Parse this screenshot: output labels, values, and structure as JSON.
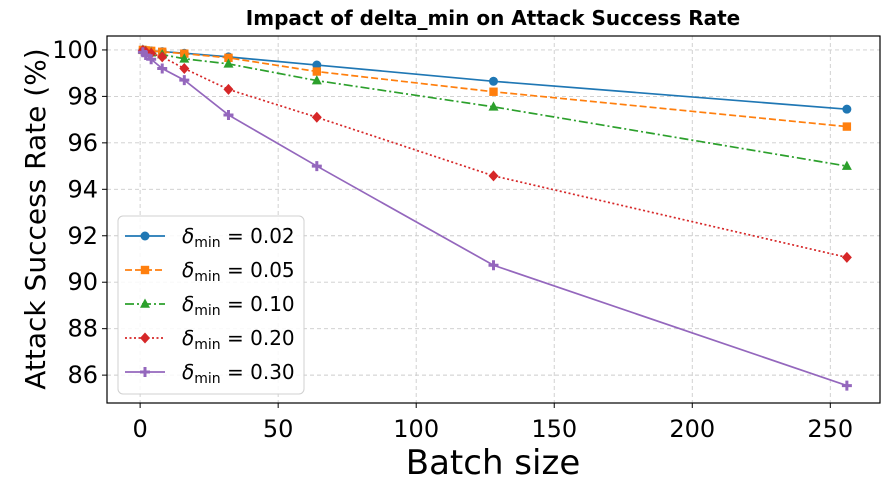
{
  "chart_data": {
    "type": "line",
    "title": "Impact of delta_min on Attack Success Rate",
    "xlabel": "Batch size",
    "ylabel": "Attack Success Rate (%)",
    "xlim": [
      -12,
      268
    ],
    "ylim": [
      84.8,
      100.6
    ],
    "xticks": [
      0,
      50,
      100,
      150,
      200,
      250
    ],
    "yticks": [
      86,
      88,
      90,
      92,
      94,
      96,
      98,
      100
    ],
    "grid": true,
    "legend_position": "lower-left",
    "series": [
      {
        "name": "δmin = 0.02",
        "label_prefix": "δ",
        "label_sub": "min",
        "label_suffix": " = 0.02",
        "color": "#1f77b4",
        "marker": "circle",
        "linestyle": "solid",
        "points": [
          [
            1,
            100.0
          ],
          [
            2,
            99.98
          ],
          [
            4,
            99.96
          ],
          [
            8,
            99.93
          ],
          [
            16,
            99.86
          ],
          [
            32,
            99.7
          ],
          [
            64,
            99.35
          ],
          [
            128,
            98.65
          ],
          [
            256,
            97.45
          ]
        ]
      },
      {
        "name": "δmin = 0.05",
        "label_prefix": "δ",
        "label_sub": "min",
        "label_suffix": " = 0.05",
        "color": "#ff7f0e",
        "marker": "square",
        "linestyle": "dashed",
        "points": [
          [
            1,
            100.0
          ],
          [
            2,
            99.98
          ],
          [
            4,
            99.96
          ],
          [
            8,
            99.92
          ],
          [
            16,
            99.84
          ],
          [
            32,
            99.66
          ],
          [
            64,
            99.07
          ],
          [
            128,
            98.2
          ],
          [
            256,
            96.7
          ]
        ]
      },
      {
        "name": "δmin = 0.10",
        "label_prefix": "δ",
        "label_sub": "min",
        "label_suffix": " = 0.10",
        "color": "#2ca02c",
        "marker": "triangle",
        "linestyle": "dashdot",
        "points": [
          [
            1,
            100.0
          ],
          [
            2,
            99.95
          ],
          [
            4,
            99.88
          ],
          [
            8,
            99.8
          ],
          [
            16,
            99.62
          ],
          [
            32,
            99.4
          ],
          [
            64,
            98.68
          ],
          [
            128,
            97.55
          ],
          [
            256,
            95.0
          ]
        ]
      },
      {
        "name": "δmin = 0.20",
        "label_prefix": "δ",
        "label_sub": "min",
        "label_suffix": " = 0.20",
        "color": "#d62728",
        "marker": "diamond",
        "linestyle": "dotted",
        "points": [
          [
            1,
            99.98
          ],
          [
            2,
            99.92
          ],
          [
            4,
            99.85
          ],
          [
            8,
            99.7
          ],
          [
            16,
            99.2
          ],
          [
            32,
            98.3
          ],
          [
            64,
            97.1
          ],
          [
            128,
            94.58
          ],
          [
            256,
            91.07
          ]
        ]
      },
      {
        "name": "δmin = 0.30",
        "label_prefix": "δ",
        "label_sub": "min",
        "label_suffix": " = 0.30",
        "color": "#9467bd",
        "marker": "plus",
        "linestyle": "solid",
        "points": [
          [
            1,
            99.9
          ],
          [
            2,
            99.78
          ],
          [
            4,
            99.6
          ],
          [
            8,
            99.2
          ],
          [
            16,
            98.7
          ],
          [
            32,
            97.2
          ],
          [
            64,
            95.0
          ],
          [
            128,
            90.73
          ],
          [
            256,
            85.55
          ]
        ]
      }
    ]
  }
}
